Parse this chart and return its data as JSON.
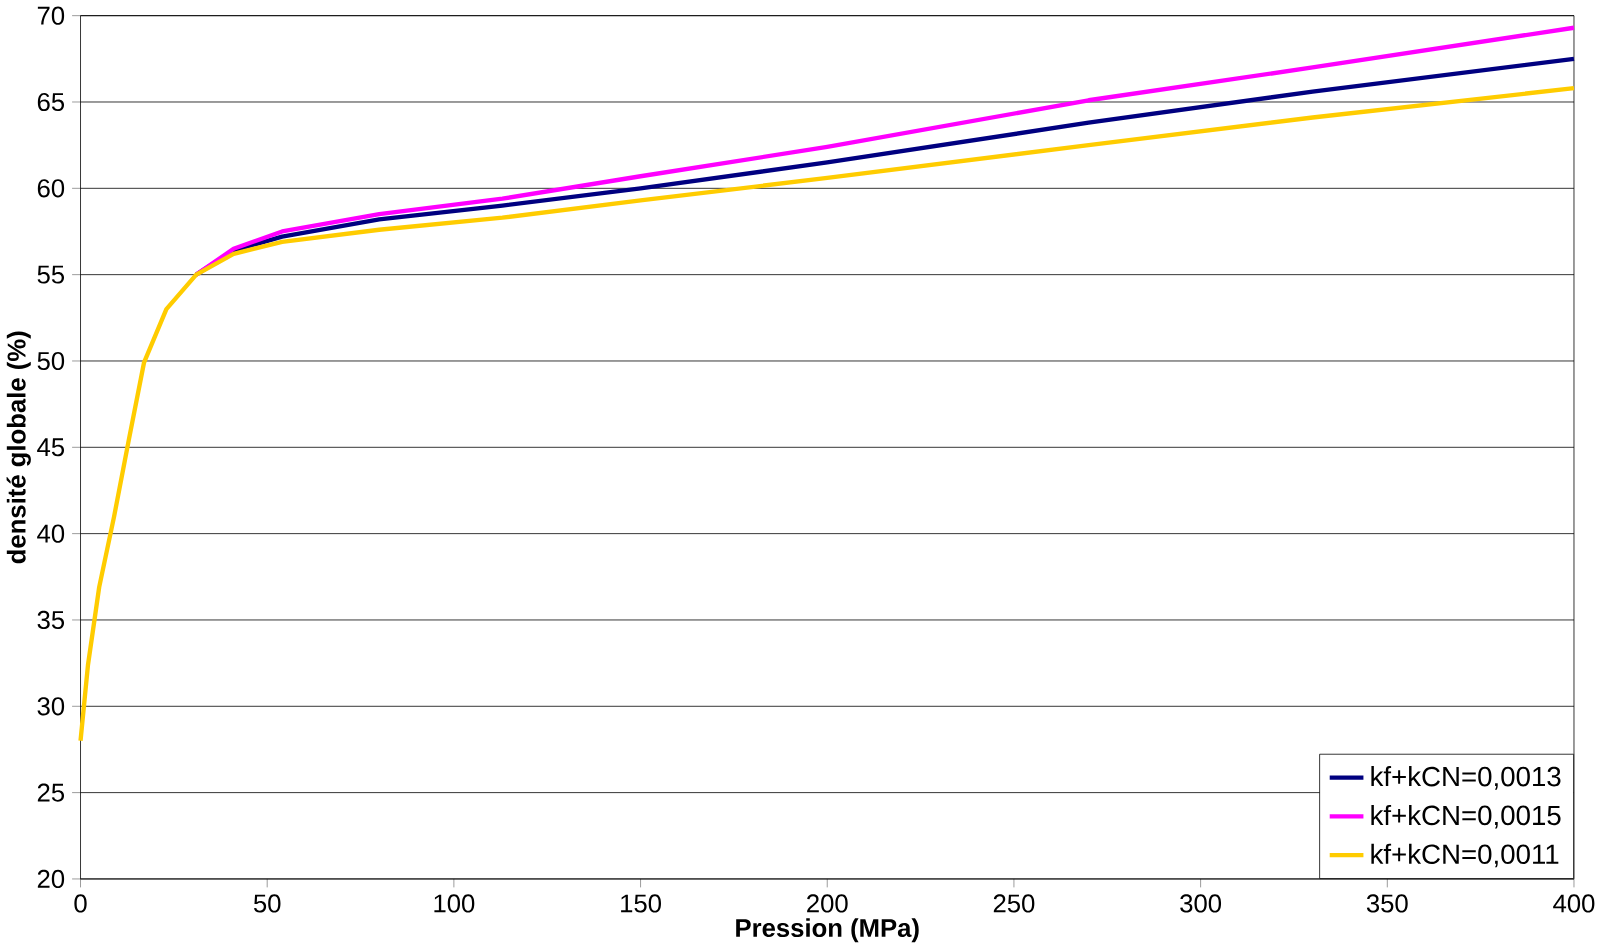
{
  "chart_data": {
    "type": "line",
    "xlabel": "Pression (MPa)",
    "ylabel": "densité globale (%)",
    "x": [
      0,
      2,
      5,
      9,
      13,
      17,
      23,
      31,
      41,
      54,
      80,
      113,
      150,
      200,
      270,
      330,
      400
    ],
    "series": [
      {
        "name": "kf+kCN=0,0013",
        "color": "#000080",
        "values": [
          null,
          null,
          null,
          null,
          null,
          null,
          null,
          55,
          56.4,
          57.2,
          58.2,
          59.0,
          60.0,
          61.5,
          63.8,
          65.6,
          67.5
        ]
      },
      {
        "name": "kf+kCN=0,0015",
        "color": "#ff00ff",
        "values": [
          null,
          null,
          null,
          null,
          null,
          null,
          null,
          55,
          56.5,
          57.5,
          58.5,
          59.4,
          60.7,
          62.4,
          65.1,
          67.0,
          69.3
        ]
      },
      {
        "name": "kf+kCN=0,0011",
        "color": "#ffcc00",
        "values": [
          28,
          32.4,
          36.9,
          41,
          45.5,
          49.9,
          53,
          55,
          56.2,
          56.9,
          57.6,
          58.3,
          59.3,
          60.6,
          62.5,
          64.1,
          65.8
        ]
      }
    ],
    "xlim": [
      0,
      400
    ],
    "xticks": [
      0,
      50,
      100,
      150,
      200,
      250,
      300,
      350,
      400
    ],
    "ylim": [
      20,
      70
    ],
    "yticks": [
      20,
      25,
      30,
      35,
      40,
      45,
      50,
      55,
      60,
      65,
      70
    ],
    "grid": "y",
    "legend": "bottom right",
    "marker": "none",
    "line_style": "solid"
  }
}
